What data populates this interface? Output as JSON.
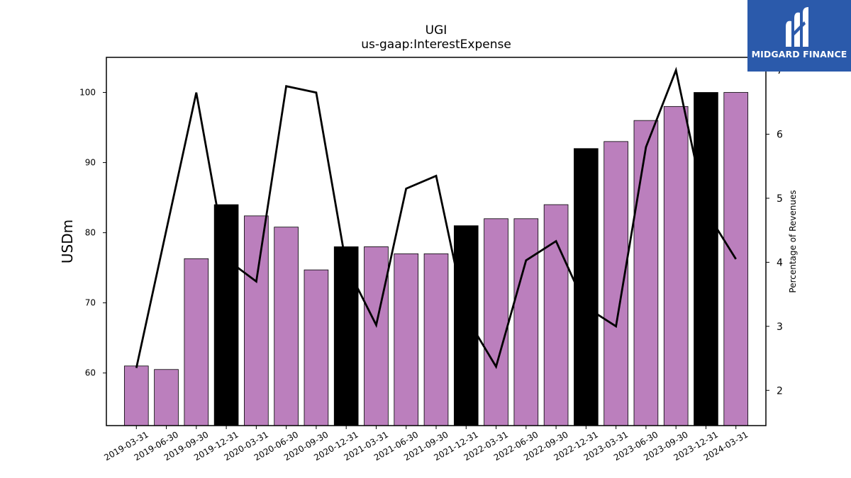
{
  "chart_data": {
    "type": "bar",
    "title": "UGI",
    "subtitle": "us-gaap:InterestExpense",
    "ylabel": "USDm",
    "y2label": "Percentage of Revenues",
    "ylim": [
      52.5,
      105
    ],
    "y2lim": [
      1.45,
      7.2
    ],
    "yticks": [
      60,
      70,
      80,
      90,
      100
    ],
    "y2ticks": [
      2,
      3,
      4,
      5,
      6,
      7
    ],
    "categories": [
      "2019-03-31",
      "2019-06-30",
      "2019-09-30",
      "2019-12-31",
      "2020-03-31",
      "2020-06-30",
      "2020-09-30",
      "2020-12-31",
      "2021-03-31",
      "2021-06-30",
      "2021-09-30",
      "2021-12-31",
      "2022-03-31",
      "2022-06-30",
      "2022-09-30",
      "2022-12-31",
      "2023-03-31",
      "2023-06-30",
      "2023-09-30",
      "2023-12-31",
      "2024-03-31"
    ],
    "series": [
      {
        "type": "bar",
        "axis": "left",
        "values": [
          61,
          60.5,
          76.3,
          84,
          82.4,
          80.8,
          74.7,
          78,
          78,
          77,
          77,
          81,
          82,
          82,
          84,
          92,
          93,
          96,
          98,
          100,
          100
        ],
        "highlight": [
          false,
          false,
          false,
          true,
          false,
          false,
          false,
          true,
          false,
          false,
          false,
          true,
          false,
          false,
          false,
          true,
          false,
          false,
          false,
          true,
          false
        ]
      },
      {
        "type": "line",
        "axis": "right",
        "values": [
          2.35,
          4.5,
          6.65,
          4.05,
          3.7,
          6.75,
          6.65,
          3.95,
          3.02,
          5.15,
          5.35,
          3.15,
          2.37,
          4.03,
          4.33,
          3.3,
          3.0,
          5.8,
          7.0,
          4.8,
          4.05
        ]
      }
    ],
    "colors": {
      "bar": "#bb7fbd",
      "bar_highlight": "#000000",
      "line": "#000000"
    }
  },
  "logo": {
    "text": "MIDGARD FINANCE",
    "background": "#2b5aab"
  }
}
